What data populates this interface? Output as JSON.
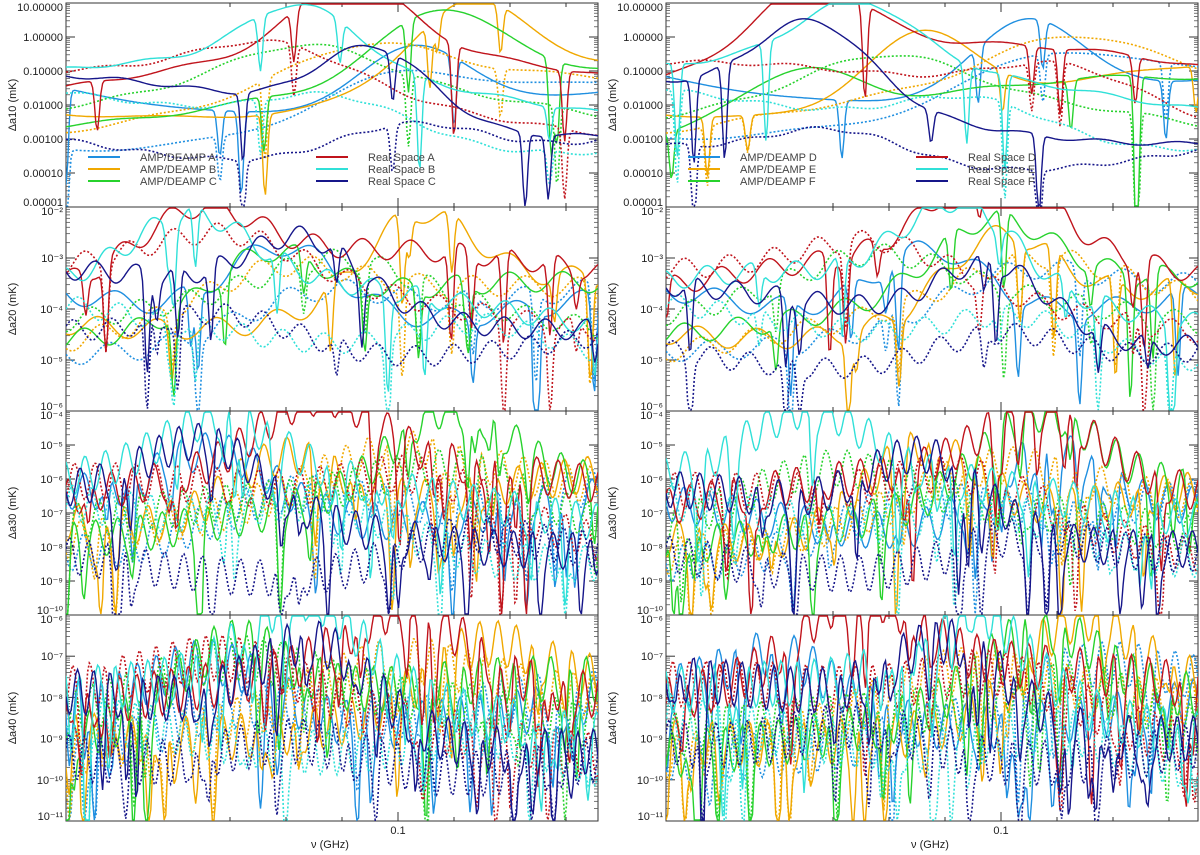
{
  "figure": {
    "x_axis_label": "ν (GHz)",
    "x_tick_label": "0.1"
  },
  "colors": {
    "A": "#1f8fe0",
    "B": "#f0a800",
    "C": "#27d22d",
    "RA": "#c0141c",
    "RB": "#30e0d8",
    "RC": "#16168a"
  },
  "chart_data": [
    {
      "type": "line",
      "panel": "left-1",
      "ylabel": "Δa10 (mK)",
      "yscale": "log",
      "ylim": [
        1e-05,
        10
      ],
      "y_tick_labels": [
        "10.00000",
        "1.00000",
        "0.10000",
        "0.01000",
        "0.00100",
        "0.00010",
        "0.00001"
      ],
      "legend": [
        "AMP/DEAMP A",
        "AMP/DEAMP B",
        "AMP/DEAMP C",
        "Real Space A",
        "Real Space B",
        "Real Space C"
      ]
    },
    {
      "type": "line",
      "panel": "right-1",
      "ylabel": "Δa10 (mK)",
      "yscale": "log",
      "ylim": [
        1e-05,
        10
      ],
      "y_tick_labels": [
        "10.00000",
        "1.00000",
        "0.10000",
        "0.01000",
        "0.00100",
        "0.00010",
        "0.00001"
      ],
      "legend": [
        "AMP/DEAMP D",
        "AMP/DEAMP E",
        "AMP/DEAMP F",
        "Real Space D",
        "Real Space E",
        "Real Space F"
      ]
    },
    {
      "type": "line",
      "panel": "left-2",
      "ylabel": "Δa20 (mK)",
      "yscale": "log",
      "ylim": [
        1e-06,
        0.01
      ],
      "y_tick_labels": [
        "10⁻²",
        "10⁻³",
        "10⁻⁴",
        "10⁻⁵",
        "10⁻⁶"
      ]
    },
    {
      "type": "line",
      "panel": "right-2",
      "ylabel": "Δa20 (mK)",
      "yscale": "log",
      "ylim": [
        1e-06,
        0.01
      ],
      "y_tick_labels": [
        "10⁻²",
        "10⁻³",
        "10⁻⁴",
        "10⁻⁵",
        "10⁻⁶"
      ]
    },
    {
      "type": "line",
      "panel": "left-3",
      "ylabel": "Δa30 (mK)",
      "yscale": "log",
      "ylim": [
        1e-10,
        0.0001
      ],
      "y_tick_labels": [
        "10⁻⁴",
        "10⁻⁵",
        "10⁻⁶",
        "10⁻⁷",
        "10⁻⁸",
        "10⁻⁹",
        "10⁻¹⁰"
      ]
    },
    {
      "type": "line",
      "panel": "right-3",
      "ylabel": "Δa30 (mK)",
      "yscale": "log",
      "ylim": [
        1e-10,
        0.0001
      ],
      "y_tick_labels": [
        "10⁻⁴",
        "10⁻⁵",
        "10⁻⁶",
        "10⁻⁷",
        "10⁻⁸",
        "10⁻⁹",
        "10⁻¹⁰"
      ]
    },
    {
      "type": "line",
      "panel": "left-4",
      "ylabel": "Δa40 (mK)",
      "yscale": "log",
      "ylim": [
        1e-11,
        1e-06
      ],
      "y_tick_labels": [
        "10⁻⁶",
        "10⁻⁷",
        "10⁻⁸",
        "10⁻⁹",
        "10⁻¹⁰",
        "10⁻¹¹"
      ]
    },
    {
      "type": "line",
      "panel": "right-4",
      "ylabel": "Δa40 (mK)",
      "yscale": "log",
      "ylim": [
        1e-11,
        1e-06
      ],
      "y_tick_labels": [
        "10⁻⁶",
        "10⁻⁷",
        "10⁻⁸",
        "10⁻⁹",
        "10⁻¹⁰",
        "10⁻¹¹"
      ]
    }
  ]
}
